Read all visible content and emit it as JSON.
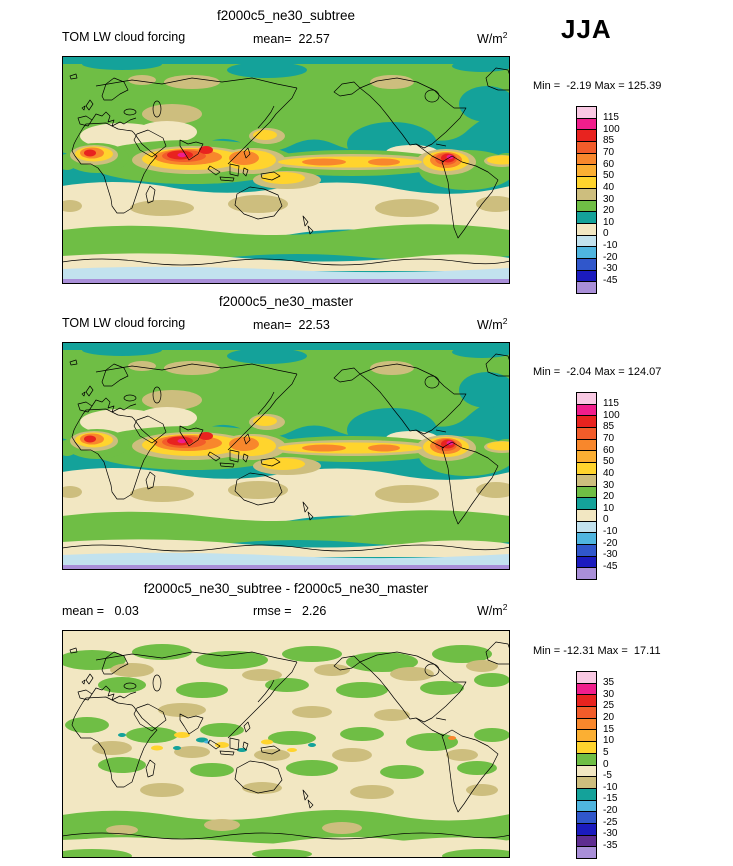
{
  "season": "JJA",
  "colors": {
    "teal": "#14A29A",
    "green": "#6FBE45",
    "cream": "#F2E7C2",
    "tan": "#CDBE7E",
    "yellow": "#FFD42D",
    "orange": "#F8872C",
    "ored": "#F25C2A",
    "red": "#E8231F",
    "magenta": "#F01E8C",
    "pink": "#F9C9E3",
    "pale": "#C2E2EE",
    "cyan": "#4FB5DF",
    "blue": "#3057CB",
    "navy": "#1B1BBE",
    "lav": "#A98FD8",
    "purple": "#5E2D91"
  },
  "panels": [
    {
      "title": "f2000c5_ne30_subtree",
      "variable": "TOM LW cloud forcing",
      "mean": "mean=  22.57",
      "units": {
        "base": "W/m",
        "exp": "2"
      },
      "minmax": "Min =  -2.19 Max = 125.39",
      "map_kind": "full",
      "colorbar": {
        "labels": [
          "115",
          "100",
          "85",
          "70",
          "60",
          "50",
          "40",
          "30",
          "20",
          "10",
          "0",
          "-10",
          "-20",
          "-30",
          "-45"
        ],
        "colors": [
          "#F9C9E3",
          "#F01E8C",
          "#E8231F",
          "#F25C2A",
          "#F8872C",
          "#FBAF33",
          "#FFD42D",
          "#CDBE7E",
          "#6FBE45",
          "#14A29A",
          "#F2E7C2",
          "#C2E2EE",
          "#4FB5DF",
          "#3057CB",
          "#1B1BBE",
          "#A98FD8"
        ]
      }
    },
    {
      "title": "f2000c5_ne30_master",
      "variable": "TOM LW cloud forcing",
      "mean": "mean=  22.53",
      "units": {
        "base": "W/m",
        "exp": "2"
      },
      "minmax": "Min =  -2.04 Max = 124.07",
      "map_kind": "full",
      "colorbar": {
        "labels": [
          "115",
          "100",
          "85",
          "70",
          "60",
          "50",
          "40",
          "30",
          "20",
          "10",
          "0",
          "-10",
          "-20",
          "-30",
          "-45"
        ],
        "colors": [
          "#F9C9E3",
          "#F01E8C",
          "#E8231F",
          "#F25C2A",
          "#F8872C",
          "#FBAF33",
          "#FFD42D",
          "#CDBE7E",
          "#6FBE45",
          "#14A29A",
          "#F2E7C2",
          "#C2E2EE",
          "#4FB5DF",
          "#3057CB",
          "#1B1BBE",
          "#A98FD8"
        ]
      }
    },
    {
      "title": "f2000c5_ne30_subtree - f2000c5_ne30_master",
      "mean": "mean =   0.03",
      "rmse": "rmse =   2.26",
      "units": {
        "base": "W/m",
        "exp": "2"
      },
      "minmax": "Min = -12.31 Max =  17.11",
      "map_kind": "diff",
      "colorbar": {
        "labels": [
          "35",
          "30",
          "25",
          "20",
          "15",
          "10",
          "5",
          "0",
          "-5",
          "-10",
          "-15",
          "-20",
          "-25",
          "-30",
          "-35"
        ],
        "colors": [
          "#F9C9E3",
          "#F01E8C",
          "#E8231F",
          "#F25C2A",
          "#F8872C",
          "#FBAF33",
          "#FFD42D",
          "#6FBE45",
          "#F2E7C2",
          "#CDBE7E",
          "#14A29A",
          "#4FB5DF",
          "#3057CB",
          "#1B1BBE",
          "#5E2D91",
          "#A98FD8"
        ]
      }
    }
  ],
  "chart_data": [
    {
      "type": "contour_map",
      "title": "f2000c5_ne30_subtree",
      "variable": "TOM LW cloud forcing",
      "season": "JJA",
      "units": "W/m^2",
      "mean": 22.57,
      "min": -2.19,
      "max": 125.39,
      "contour_levels": [
        -45,
        -30,
        -20,
        -10,
        0,
        10,
        20,
        30,
        40,
        50,
        60,
        70,
        85,
        100,
        115
      ],
      "projection": "global lat-lon",
      "legend_position": "right"
    },
    {
      "type": "contour_map",
      "title": "f2000c5_ne30_master",
      "variable": "TOM LW cloud forcing",
      "season": "JJA",
      "units": "W/m^2",
      "mean": 22.53,
      "min": -2.04,
      "max": 124.07,
      "contour_levels": [
        -45,
        -30,
        -20,
        -10,
        0,
        10,
        20,
        30,
        40,
        50,
        60,
        70,
        85,
        100,
        115
      ],
      "projection": "global lat-lon",
      "legend_position": "right"
    },
    {
      "type": "contour_map_difference",
      "title": "f2000c5_ne30_subtree - f2000c5_ne30_master",
      "variable": "TOM LW cloud forcing",
      "season": "JJA",
      "units": "W/m^2",
      "mean": 0.03,
      "rmse": 2.26,
      "min": -12.31,
      "max": 17.11,
      "contour_levels": [
        -35,
        -30,
        -25,
        -20,
        -15,
        -10,
        -5,
        0,
        5,
        10,
        15,
        20,
        25,
        30,
        35
      ],
      "projection": "global lat-lon",
      "legend_position": "right"
    }
  ]
}
